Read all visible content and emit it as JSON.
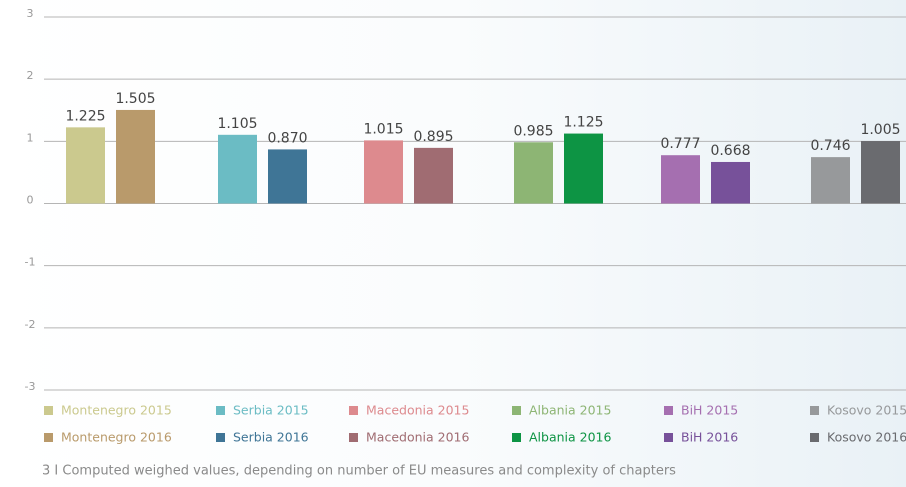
{
  "chart_data": {
    "type": "bar",
    "ylim": [
      -3,
      3
    ],
    "yticks": [
      -3,
      -2,
      -1,
      0,
      1,
      2,
      3
    ],
    "grid": true,
    "series": [
      {
        "name": "Montenegro 2015",
        "color": "#cbc98e",
        "value": 1.225
      },
      {
        "name": "Montenegro 2016",
        "color": "#b99a6b",
        "value": 1.505
      },
      {
        "name": "Serbia 2015",
        "color": "#6bbcc4",
        "value": 1.105
      },
      {
        "name": "Serbia 2016",
        "color": "#3f7596",
        "value": 0.87,
        "value_label": "0.870"
      },
      {
        "name": "Macedonia 2015",
        "color": "#dd8a8e",
        "value": 1.015
      },
      {
        "name": "Macedonia 2016",
        "color": "#a06c72",
        "value": 0.895
      },
      {
        "name": "Albania 2015",
        "color": "#8db574",
        "value": 0.985
      },
      {
        "name": "Albania 2016",
        "color": "#0d9444",
        "value": 1.125
      },
      {
        "name": "BiH 2015",
        "color": "#a56fb0",
        "value": 0.777
      },
      {
        "name": "BiH 2016",
        "color": "#77519a",
        "value": 0.668
      },
      {
        "name": "Kosovo 2015",
        "color": "#97999b",
        "value": 0.746
      },
      {
        "name": "Kosovo 2016",
        "color": "#6a6b6f",
        "value": 1.005
      }
    ],
    "caption": "3 I Computed weighed values, depending on number of EU measures and complexity of chapters"
  }
}
